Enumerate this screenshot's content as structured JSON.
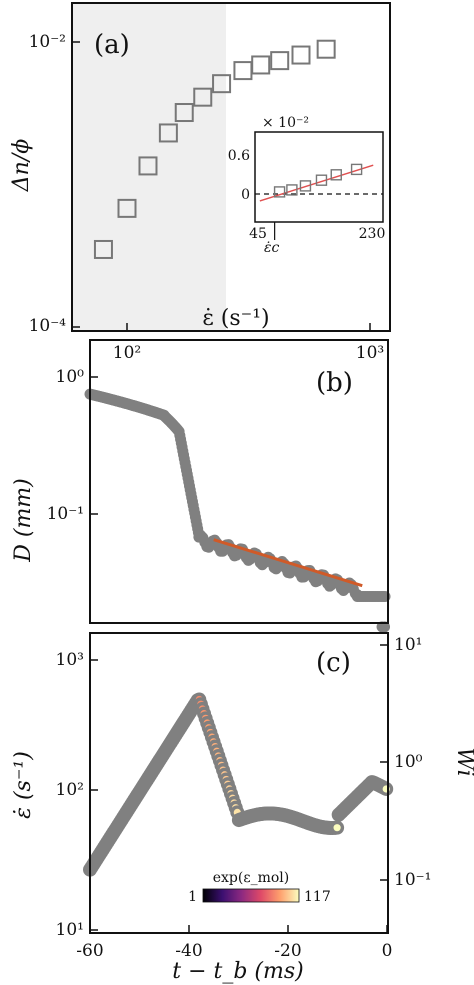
{
  "chart_data": [
    {
      "panel": "(a)",
      "type": "scatter",
      "xlabel": "ε̇ (s⁻¹)",
      "ylabel": "Δn/ϕ",
      "xscale": "log",
      "yscale": "log",
      "xlim": [
        70,
        1200
      ],
      "ylim": [
        0.0001,
        0.015
      ],
      "x_ticks": [
        "10²",
        "10³"
      ],
      "y_ticks": [
        "10⁻²",
        "10⁻⁴"
      ],
      "shaded_region_x": [
        70,
        260
      ],
      "marker": "open-square",
      "marker_color": "#777777",
      "x": [
        80,
        100,
        122,
        148,
        172,
        205,
        245,
        300,
        355,
        425,
        520,
        660
      ],
      "y": [
        0.00035,
        0.00068,
        0.00135,
        0.0023,
        0.0032,
        0.0041,
        0.0051,
        0.0063,
        0.0069,
        0.0074,
        0.0081,
        0.0089
      ],
      "inset": {
        "type": "scatter",
        "x_ticks": [
          "45",
          "230"
        ],
        "y_ticks": [
          "0.6",
          "0"
        ],
        "y_multiplier": "× 10⁻²",
        "xlim": [
          45,
          235
        ],
        "ylim": [
          -0.25,
          0.6
        ],
        "x_marker_label": "ε̇c",
        "x_marker": 72,
        "x": [
          80,
          100,
          122,
          148,
          172,
          205
        ],
        "y": [
          0.035,
          0.068,
          0.135,
          0.23,
          0.32,
          0.41
        ],
        "fit_color": "#e05050",
        "fit_line": {
          "x": [
            48,
            232
          ],
          "y": [
            -0.115,
            0.48
          ]
        },
        "zero_line": true
      }
    },
    {
      "panel": "(b)",
      "type": "scatter",
      "ylabel": "D (mm)",
      "yscale": "log",
      "xlim": [
        -60,
        0
      ],
      "ylim": [
        0.012,
        1.0
      ],
      "y_ticks": [
        "10⁰",
        "10⁻¹"
      ],
      "marker": "filled-circle",
      "marker_color": "#808080",
      "fit_color": "#d05a28",
      "fit_line": {
        "x": [
          -35,
          -5
        ],
        "y": [
          0.065,
          0.03
        ]
      }
    },
    {
      "panel": "(c)",
      "type": "scatter",
      "xlabel": "t − t_b (ms)",
      "ylabel": "ε̇ (s⁻¹)",
      "ylabel_right": "Wi",
      "yscale": "log",
      "xlim": [
        -60,
        0
      ],
      "ylim": [
        10,
        1400
      ],
      "x_ticks": [
        "-60",
        "-40",
        "-20",
        "0"
      ],
      "y_ticks": [
        "10³",
        "10²",
        "10¹"
      ],
      "y_right_ticks": [
        "10¹",
        "10⁰",
        "10⁻¹"
      ],
      "colorbar": {
        "label": "exp(ε_mol)",
        "min_label": "1",
        "max_label": "117"
      },
      "gray_color": "#808080"
    }
  ]
}
